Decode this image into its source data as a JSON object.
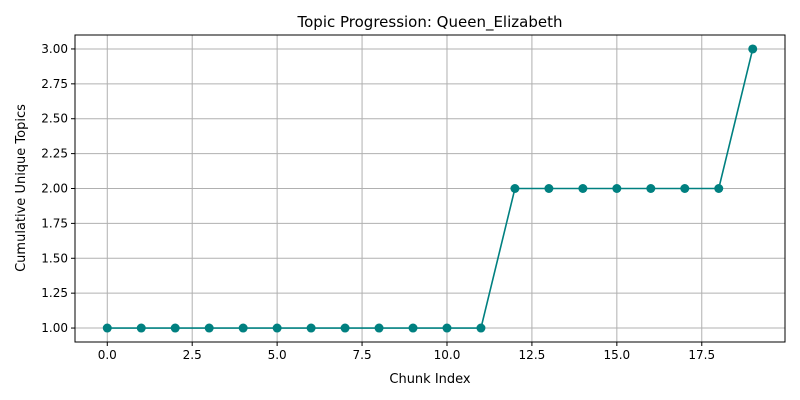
{
  "chart_data": {
    "type": "line",
    "title": "Topic Progression: Queen_Elizabeth",
    "xlabel": "Chunk Index",
    "ylabel": "Cumulative Unique Topics",
    "x": [
      0,
      1,
      2,
      3,
      4,
      5,
      6,
      7,
      8,
      9,
      10,
      11,
      12,
      13,
      14,
      15,
      16,
      17,
      18,
      19
    ],
    "series": [
      {
        "values": [
          1,
          1,
          1,
          1,
          1,
          1,
          1,
          1,
          1,
          1,
          1,
          1,
          2,
          2,
          2,
          2,
          2,
          2,
          2,
          3
        ],
        "color": "#008080",
        "marker": "circle"
      }
    ],
    "xlim": [
      -0.95,
      19.95
    ],
    "ylim": [
      0.9,
      3.1
    ],
    "xticks": [
      0.0,
      2.5,
      5.0,
      7.5,
      10.0,
      12.5,
      15.0,
      17.5
    ],
    "xtick_labels": [
      "0.0",
      "2.5",
      "5.0",
      "7.5",
      "10.0",
      "12.5",
      "15.0",
      "17.5"
    ],
    "yticks": [
      1.0,
      1.25,
      1.5,
      1.75,
      2.0,
      2.25,
      2.5,
      2.75,
      3.0
    ],
    "ytick_labels": [
      "1.00",
      "1.25",
      "1.50",
      "1.75",
      "2.00",
      "2.25",
      "2.50",
      "2.75",
      "3.00"
    ],
    "grid": true,
    "legend": false
  }
}
